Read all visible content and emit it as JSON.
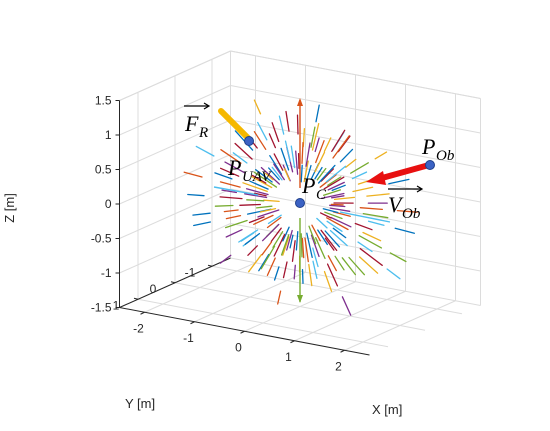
{
  "chart_data": {
    "type": "3d-vector-field",
    "title": "",
    "xlabel": "X [m]",
    "ylabel": "Y [m]",
    "zlabel": "Z [m]",
    "x_ticks": [
      "-2",
      "-1",
      "0",
      "1",
      "2"
    ],
    "y_ticks": [
      "1",
      "0",
      "-1"
    ],
    "z_ticks": [
      "1.5",
      "1",
      "0.5",
      "0",
      "-0.5",
      "-1",
      "-1.5"
    ],
    "xlim": [
      -2.5,
      2.5
    ],
    "ylim": [
      -1.5,
      1.5
    ],
    "zlim": [
      -1.5,
      1.5
    ],
    "grid": true,
    "points": [
      {
        "name": "P_C",
        "base": "P",
        "sub": "C",
        "x": 0,
        "y": 0,
        "z": 0,
        "color": "#3b62c4"
      },
      {
        "name": "P_UAV",
        "base": "P",
        "sub": "UAV",
        "x": -0.6,
        "y": 0.3,
        "z": 0.8,
        "color": "#3b62c4"
      },
      {
        "name": "P_Ob",
        "base": "P",
        "sub": "Ob",
        "x": 1.8,
        "y": 0,
        "z": 0.45,
        "color": "#3b62c4"
      }
    ],
    "vectors": [
      {
        "name": "F_R",
        "base": "F",
        "sub": "R",
        "color": "#f5b800"
      },
      {
        "name": "V_Ob",
        "base": "V",
        "sub": "Ob",
        "color": "#e81010"
      }
    ],
    "field_colors": [
      "#0072bd",
      "#d95319",
      "#edb120",
      "#7e2f8e",
      "#77ac30",
      "#4dbeee",
      "#a2142f"
    ]
  }
}
